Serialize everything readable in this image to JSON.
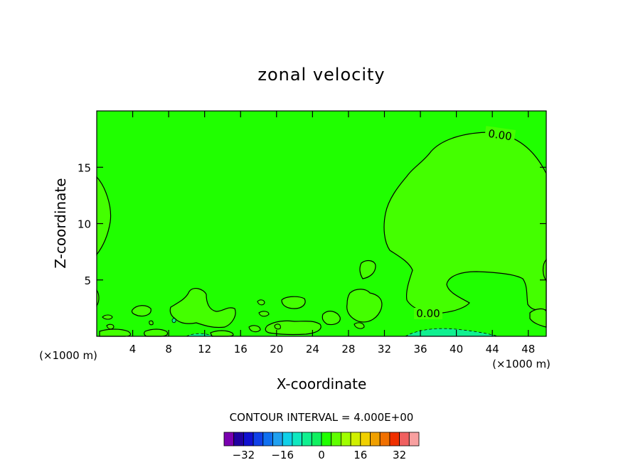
{
  "chart_data": {
    "type": "contour",
    "title": "zonal velocity",
    "xlabel": "X-coordinate",
    "ylabel": "Z-coordinate",
    "x_unit_label_left": "(×1000 m)",
    "x_unit_label_right": "(×1000 m)",
    "xlim": [
      0,
      50
    ],
    "ylim": [
      0,
      20
    ],
    "x_ticks": [
      4,
      8,
      12,
      16,
      20,
      24,
      28,
      32,
      36,
      40,
      44,
      48
    ],
    "y_ticks": [
      5,
      10,
      15
    ],
    "contour_labels": [
      "0.00",
      "0.00"
    ],
    "contour_interval_text": "CONTOUR INTERVAL = 4.000E+00",
    "colorbar": {
      "tick_labels": [
        "−32",
        "−16",
        "0",
        "16",
        "32"
      ],
      "tick_values": [
        -32,
        -16,
        0,
        16,
        32
      ],
      "colors": [
        "#7a00b0",
        "#2000a0",
        "#1010d0",
        "#1040e8",
        "#1070f0",
        "#20a0f0",
        "#10d0e8",
        "#10e8c0",
        "#10f090",
        "#10f060",
        "#20ff00",
        "#60ff00",
        "#a0ff00",
        "#d0f000",
        "#f0d000",
        "#f0a000",
        "#f07000",
        "#f03000",
        "#f06060",
        "#f8a0a0"
      ]
    },
    "fill_colors": {
      "background": "#20ff00",
      "shaded": "#44ff00",
      "negative": "#10f090"
    },
    "grid": false
  }
}
